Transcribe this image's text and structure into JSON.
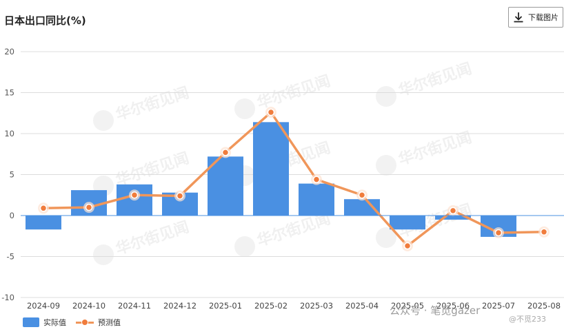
{
  "header": {
    "title": "日本出口同比(%)",
    "download_label": "下载图片",
    "download_icon": "download-icon"
  },
  "watermarks": {
    "logo_text": "华尔街见闻",
    "footer_text": "公众号 · 笔觅gazer",
    "footer_sub": "@不觅233"
  },
  "colors": {
    "bar": "#4a90e2",
    "line": "#f0965a",
    "marker": "#f07c3c"
  },
  "chart_data": {
    "type": "bar",
    "title": "日本出口同比(%)",
    "categories": [
      "2024-09",
      "2024-10",
      "2024-11",
      "2024-12",
      "2025-01",
      "2025-02",
      "2025-03",
      "2025-04",
      "2025-05",
      "2025-06",
      "2025-07",
      "2025-08"
    ],
    "series": [
      {
        "name": "实际值",
        "type": "bar",
        "values": [
          -1.7,
          3.1,
          3.8,
          2.8,
          7.2,
          11.4,
          3.9,
          2.0,
          -1.7,
          -0.5,
          -2.6,
          null
        ]
      },
      {
        "name": "预测值",
        "type": "line",
        "values": [
          0.9,
          1.0,
          2.5,
          2.4,
          7.7,
          12.6,
          4.4,
          2.5,
          -3.7,
          0.6,
          -2.1,
          -2.0
        ]
      }
    ],
    "ylim": [
      -10,
      20
    ],
    "yticks": [
      -10,
      -5,
      0,
      5,
      10,
      15,
      20
    ],
    "grid": true,
    "legend": "bottom-left"
  }
}
